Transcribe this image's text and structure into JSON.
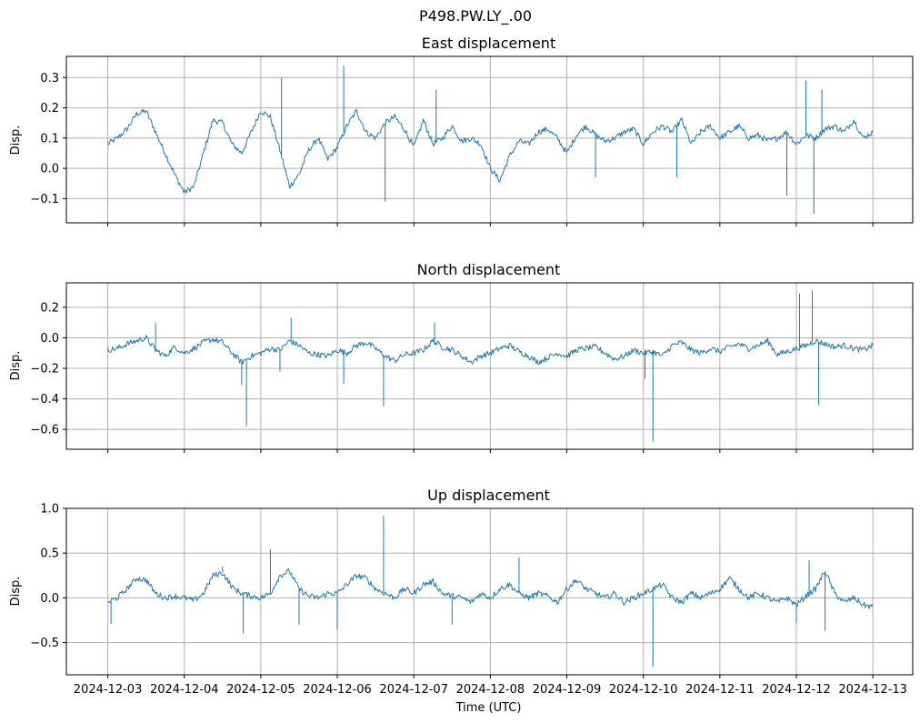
{
  "figure": {
    "suptitle": "P498.PW.LY_.00",
    "xlabel": "Time (UTC)",
    "line_color": "#1f77b4",
    "grid_color": "#b0b0b0"
  },
  "chart_data": [
    {
      "type": "line",
      "title": "East displacement",
      "ylabel": "Disp.",
      "ylim": [
        -0.18,
        0.37
      ],
      "yticks": [
        -0.1,
        0.0,
        0.1,
        0.2,
        0.3
      ],
      "ytick_labels": [
        "−0.1",
        "0.0",
        "0.1",
        "0.2",
        "0.3"
      ],
      "xlim": [
        "2024-12-02T11:00",
        "2024-12-13T12:30"
      ],
      "xticks": [
        "2024-12-03",
        "2024-12-04",
        "2024-12-05",
        "2024-12-06",
        "2024-12-07",
        "2024-12-08",
        "2024-12-09",
        "2024-12-10",
        "2024-12-11",
        "2024-12-12",
        "2024-12-13"
      ],
      "xtick_labels_visible": false,
      "grid": true,
      "series": [
        {
          "x": [
            "2024-12-03T00:00",
            "2024-12-03T03:00",
            "2024-12-03T06:00",
            "2024-12-03T09:00",
            "2024-12-03T12:00",
            "2024-12-03T15:00",
            "2024-12-03T18:00",
            "2024-12-03T21:00",
            "2024-12-04T00:00",
            "2024-12-04T03:00",
            "2024-12-04T06:00",
            "2024-12-04T09:00",
            "2024-12-04T12:00",
            "2024-12-04T15:00",
            "2024-12-04T18:00",
            "2024-12-04T21:00",
            "2024-12-05T00:00",
            "2024-12-05T03:00",
            "2024-12-05T06:00",
            "2024-12-05T09:00",
            "2024-12-05T12:00",
            "2024-12-05T15:00",
            "2024-12-05T18:00",
            "2024-12-05T21:00",
            "2024-12-06T00:00",
            "2024-12-06T03:00",
            "2024-12-06T06:00",
            "2024-12-06T09:00",
            "2024-12-06T12:00",
            "2024-12-06T15:00",
            "2024-12-06T18:00",
            "2024-12-06T21:00",
            "2024-12-07T00:00",
            "2024-12-07T03:00",
            "2024-12-07T06:00",
            "2024-12-07T09:00",
            "2024-12-07T12:00",
            "2024-12-07T15:00",
            "2024-12-07T18:00",
            "2024-12-07T21:00",
            "2024-12-08T00:00",
            "2024-12-08T03:00",
            "2024-12-08T06:00",
            "2024-12-08T09:00",
            "2024-12-08T12:00",
            "2024-12-08T15:00",
            "2024-12-08T18:00",
            "2024-12-08T21:00",
            "2024-12-09T00:00",
            "2024-12-09T03:00",
            "2024-12-09T06:00",
            "2024-12-09T09:00",
            "2024-12-09T12:00",
            "2024-12-09T15:00",
            "2024-12-09T18:00",
            "2024-12-09T21:00",
            "2024-12-10T00:00",
            "2024-12-10T03:00",
            "2024-12-10T06:00",
            "2024-12-10T09:00",
            "2024-12-10T12:00",
            "2024-12-10T15:00",
            "2024-12-10T18:00",
            "2024-12-10T21:00",
            "2024-12-11T00:00",
            "2024-12-11T03:00",
            "2024-12-11T06:00",
            "2024-12-11T09:00",
            "2024-12-11T12:00",
            "2024-12-11T15:00",
            "2024-12-11T18:00",
            "2024-12-11T21:00",
            "2024-12-12T00:00",
            "2024-12-12T03:00",
            "2024-12-12T06:00",
            "2024-12-12T09:00",
            "2024-12-12T12:00",
            "2024-12-12T15:00",
            "2024-12-12T18:00",
            "2024-12-12T21:00",
            "2024-12-13T00:00"
          ],
          "y": [
            0.08,
            0.1,
            0.13,
            0.18,
            0.19,
            0.12,
            0.05,
            -0.02,
            -0.08,
            -0.06,
            0.05,
            0.16,
            0.15,
            0.08,
            0.05,
            0.12,
            0.19,
            0.17,
            0.06,
            -0.06,
            -0.02,
            0.06,
            0.1,
            0.03,
            0.07,
            0.14,
            0.19,
            0.12,
            0.1,
            0.15,
            0.17,
            0.13,
            0.07,
            0.16,
            0.08,
            0.1,
            0.14,
            0.09,
            0.1,
            0.08,
            0.0,
            -0.04,
            0.04,
            0.09,
            0.08,
            0.12,
            0.13,
            0.1,
            0.05,
            0.11,
            0.14,
            0.11,
            0.09,
            0.1,
            0.12,
            0.13,
            0.08,
            0.12,
            0.14,
            0.12,
            0.16,
            0.08,
            0.12,
            0.14,
            0.1,
            0.12,
            0.14,
            0.1,
            0.11,
            0.09,
            0.1,
            0.12,
            0.08,
            0.11,
            0.1,
            0.13,
            0.14,
            0.12,
            0.16,
            0.1,
            0.12
          ]
        }
      ],
      "spikes": [
        {
          "x": "2024-12-05T06:30",
          "y": 0.3
        },
        {
          "x": "2024-12-06T02:00",
          "y": 0.34
        },
        {
          "x": "2024-12-06T15:00",
          "y": -0.11
        },
        {
          "x": "2024-12-07T07:00",
          "y": 0.26
        },
        {
          "x": "2024-12-09T09:00",
          "y": -0.03
        },
        {
          "x": "2024-12-10T10:30",
          "y": -0.03
        },
        {
          "x": "2024-12-11T21:00",
          "y": -0.09
        },
        {
          "x": "2024-12-12T03:00",
          "y": 0.29
        },
        {
          "x": "2024-12-12T05:30",
          "y": -0.15
        },
        {
          "x": "2024-12-12T08:00",
          "y": 0.26
        }
      ]
    },
    {
      "type": "line",
      "title": "North displacement",
      "ylabel": "Disp.",
      "ylim": [
        -0.73,
        0.36
      ],
      "yticks": [
        -0.6,
        -0.4,
        -0.2,
        0.0,
        0.2
      ],
      "ytick_labels": [
        "−0.6",
        "−0.4",
        "−0.2",
        "0.0",
        "0.2"
      ],
      "xlim": [
        "2024-12-02T11:00",
        "2024-12-13T12:30"
      ],
      "xticks": [
        "2024-12-03",
        "2024-12-04",
        "2024-12-05",
        "2024-12-06",
        "2024-12-07",
        "2024-12-08",
        "2024-12-09",
        "2024-12-10",
        "2024-12-11",
        "2024-12-12",
        "2024-12-13"
      ],
      "xtick_labels_visible": false,
      "grid": true,
      "series": [
        {
          "x": [
            "2024-12-03T00:00",
            "2024-12-03T03:00",
            "2024-12-03T06:00",
            "2024-12-03T09:00",
            "2024-12-03T12:00",
            "2024-12-03T15:00",
            "2024-12-03T18:00",
            "2024-12-03T21:00",
            "2024-12-04T00:00",
            "2024-12-04T03:00",
            "2024-12-04T06:00",
            "2024-12-04T09:00",
            "2024-12-04T12:00",
            "2024-12-04T15:00",
            "2024-12-04T18:00",
            "2024-12-04T21:00",
            "2024-12-05T00:00",
            "2024-12-05T03:00",
            "2024-12-05T06:00",
            "2024-12-05T09:00",
            "2024-12-05T12:00",
            "2024-12-05T15:00",
            "2024-12-05T18:00",
            "2024-12-05T21:00",
            "2024-12-06T00:00",
            "2024-12-06T03:00",
            "2024-12-06T06:00",
            "2024-12-06T09:00",
            "2024-12-06T12:00",
            "2024-12-06T15:00",
            "2024-12-06T18:00",
            "2024-12-06T21:00",
            "2024-12-07T00:00",
            "2024-12-07T03:00",
            "2024-12-07T06:00",
            "2024-12-07T09:00",
            "2024-12-07T12:00",
            "2024-12-07T15:00",
            "2024-12-07T18:00",
            "2024-12-07T21:00",
            "2024-12-08T00:00",
            "2024-12-08T03:00",
            "2024-12-08T06:00",
            "2024-12-08T09:00",
            "2024-12-08T12:00",
            "2024-12-08T15:00",
            "2024-12-08T18:00",
            "2024-12-08T21:00",
            "2024-12-09T00:00",
            "2024-12-09T03:00",
            "2024-12-09T06:00",
            "2024-12-09T09:00",
            "2024-12-09T12:00",
            "2024-12-09T15:00",
            "2024-12-09T18:00",
            "2024-12-09T21:00",
            "2024-12-10T00:00",
            "2024-12-10T03:00",
            "2024-12-10T06:00",
            "2024-12-10T09:00",
            "2024-12-10T12:00",
            "2024-12-10T15:00",
            "2024-12-10T18:00",
            "2024-12-10T21:00",
            "2024-12-11T00:00",
            "2024-12-11T03:00",
            "2024-12-11T06:00",
            "2024-12-11T09:00",
            "2024-12-11T12:00",
            "2024-12-11T15:00",
            "2024-12-11T18:00",
            "2024-12-11T21:00",
            "2024-12-12T00:00",
            "2024-12-12T03:00",
            "2024-12-12T06:00",
            "2024-12-12T09:00",
            "2024-12-12T12:00",
            "2024-12-12T15:00",
            "2024-12-12T18:00",
            "2024-12-12T21:00",
            "2024-12-13T00:00"
          ],
          "y": [
            -0.08,
            -0.07,
            -0.04,
            -0.02,
            0.0,
            -0.08,
            -0.12,
            -0.06,
            -0.1,
            -0.07,
            -0.03,
            -0.01,
            -0.03,
            -0.1,
            -0.16,
            -0.12,
            -0.1,
            -0.07,
            -0.08,
            -0.02,
            -0.05,
            -0.1,
            -0.11,
            -0.12,
            -0.08,
            -0.1,
            -0.05,
            -0.03,
            -0.07,
            -0.12,
            -0.15,
            -0.11,
            -0.1,
            -0.08,
            -0.02,
            -0.06,
            -0.08,
            -0.12,
            -0.16,
            -0.12,
            -0.1,
            -0.07,
            -0.05,
            -0.09,
            -0.12,
            -0.16,
            -0.13,
            -0.1,
            -0.12,
            -0.08,
            -0.07,
            -0.06,
            -0.1,
            -0.14,
            -0.12,
            -0.08,
            -0.1,
            -0.09,
            -0.12,
            -0.05,
            -0.03,
            -0.08,
            -0.1,
            -0.07,
            -0.09,
            -0.06,
            -0.04,
            -0.07,
            -0.05,
            -0.02,
            -0.11,
            -0.09,
            -0.07,
            -0.05,
            -0.02,
            -0.04,
            -0.06,
            -0.05,
            -0.07,
            -0.08,
            -0.05
          ]
        }
      ],
      "spikes": [
        {
          "x": "2024-12-03T15:00",
          "y": 0.1
        },
        {
          "x": "2024-12-04T18:00",
          "y": -0.31
        },
        {
          "x": "2024-12-04T19:30",
          "y": -0.58
        },
        {
          "x": "2024-12-05T06:00",
          "y": -0.22
        },
        {
          "x": "2024-12-05T09:30",
          "y": 0.13
        },
        {
          "x": "2024-12-06T02:00",
          "y": -0.3
        },
        {
          "x": "2024-12-06T14:30",
          "y": -0.45
        },
        {
          "x": "2024-12-07T06:30",
          "y": 0.1
        },
        {
          "x": "2024-12-10T00:30",
          "y": -0.27
        },
        {
          "x": "2024-12-10T03:00",
          "y": -0.68
        },
        {
          "x": "2024-12-12T01:00",
          "y": 0.29
        },
        {
          "x": "2024-12-12T05:00",
          "y": 0.31
        },
        {
          "x": "2024-12-12T07:00",
          "y": -0.44
        }
      ]
    },
    {
      "type": "line",
      "title": "Up displacement",
      "ylabel": "Disp.",
      "ylim": [
        -0.86,
        1.0
      ],
      "yticks": [
        -0.5,
        0.0,
        0.5,
        1.0
      ],
      "ytick_labels": [
        "−0.5",
        "0.0",
        "0.5",
        "1.0"
      ],
      "xlim": [
        "2024-12-02T11:00",
        "2024-12-13T12:30"
      ],
      "xticks": [
        "2024-12-03",
        "2024-12-04",
        "2024-12-05",
        "2024-12-06",
        "2024-12-07",
        "2024-12-08",
        "2024-12-09",
        "2024-12-10",
        "2024-12-11",
        "2024-12-12",
        "2024-12-13"
      ],
      "xtick_labels": [
        "2024-12-03",
        "2024-12-04",
        "2024-12-05",
        "2024-12-06",
        "2024-12-07",
        "2024-12-08",
        "2024-12-09",
        "2024-12-10",
        "2024-12-11",
        "2024-12-12",
        "2024-12-13"
      ],
      "xtick_labels_visible": true,
      "grid": true,
      "series": [
        {
          "x": [
            "2024-12-03T00:00",
            "2024-12-03T03:00",
            "2024-12-03T06:00",
            "2024-12-03T09:00",
            "2024-12-03T12:00",
            "2024-12-03T15:00",
            "2024-12-03T18:00",
            "2024-12-03T21:00",
            "2024-12-04T00:00",
            "2024-12-04T03:00",
            "2024-12-04T06:00",
            "2024-12-04T09:00",
            "2024-12-04T12:00",
            "2024-12-04T15:00",
            "2024-12-04T18:00",
            "2024-12-04T21:00",
            "2024-12-05T00:00",
            "2024-12-05T03:00",
            "2024-12-05T06:00",
            "2024-12-05T09:00",
            "2024-12-05T12:00",
            "2024-12-05T15:00",
            "2024-12-05T18:00",
            "2024-12-05T21:00",
            "2024-12-06T00:00",
            "2024-12-06T03:00",
            "2024-12-06T06:00",
            "2024-12-06T09:00",
            "2024-12-06T12:00",
            "2024-12-06T15:00",
            "2024-12-06T18:00",
            "2024-12-06T21:00",
            "2024-12-07T00:00",
            "2024-12-07T03:00",
            "2024-12-07T06:00",
            "2024-12-07T09:00",
            "2024-12-07T12:00",
            "2024-12-07T15:00",
            "2024-12-07T18:00",
            "2024-12-07T21:00",
            "2024-12-08T00:00",
            "2024-12-08T03:00",
            "2024-12-08T06:00",
            "2024-12-08T09:00",
            "2024-12-08T12:00",
            "2024-12-08T15:00",
            "2024-12-08T18:00",
            "2024-12-08T21:00",
            "2024-12-09T00:00",
            "2024-12-09T03:00",
            "2024-12-09T06:00",
            "2024-12-09T09:00",
            "2024-12-09T12:00",
            "2024-12-09T15:00",
            "2024-12-09T18:00",
            "2024-12-09T21:00",
            "2024-12-10T00:00",
            "2024-12-10T03:00",
            "2024-12-10T06:00",
            "2024-12-10T09:00",
            "2024-12-10T12:00",
            "2024-12-10T15:00",
            "2024-12-10T18:00",
            "2024-12-10T21:00",
            "2024-12-11T00:00",
            "2024-12-11T03:00",
            "2024-12-11T06:00",
            "2024-12-11T09:00",
            "2024-12-11T12:00",
            "2024-12-11T15:00",
            "2024-12-11T18:00",
            "2024-12-11T21:00",
            "2024-12-12T00:00",
            "2024-12-12T03:00",
            "2024-12-12T06:00",
            "2024-12-12T09:00",
            "2024-12-12T12:00",
            "2024-12-12T15:00",
            "2024-12-12T18:00",
            "2024-12-12T21:00",
            "2024-12-13T00:00"
          ],
          "y": [
            -0.05,
            0.0,
            0.1,
            0.22,
            0.2,
            0.05,
            0.0,
            0.02,
            0.0,
            -0.03,
            0.05,
            0.25,
            0.28,
            0.12,
            0.05,
            0.02,
            0.0,
            0.05,
            0.25,
            0.3,
            0.1,
            0.02,
            0.0,
            0.05,
            0.05,
            0.15,
            0.25,
            0.22,
            0.1,
            0.05,
            0.0,
            0.1,
            0.05,
            0.15,
            0.18,
            0.05,
            0.02,
            0.0,
            -0.05,
            0.05,
            0.0,
            0.1,
            0.15,
            0.05,
            0.0,
            0.05,
            0.02,
            -0.05,
            0.1,
            0.2,
            0.1,
            0.05,
            0.0,
            0.05,
            -0.05,
            0.0,
            0.05,
            0.1,
            0.15,
            0.0,
            -0.05,
            0.05,
            0.0,
            0.05,
            0.1,
            0.22,
            0.1,
            0.0,
            0.05,
            0.0,
            -0.05,
            0.0,
            -0.08,
            0.02,
            0.1,
            0.3,
            0.05,
            -0.05,
            0.0,
            -0.08,
            -0.1
          ]
        }
      ],
      "spikes": [
        {
          "x": "2024-12-03T01:00",
          "y": -0.29
        },
        {
          "x": "2024-12-04T12:00",
          "y": 0.35
        },
        {
          "x": "2024-12-04T18:30",
          "y": -0.4
        },
        {
          "x": "2024-12-05T03:00",
          "y": 0.54
        },
        {
          "x": "2024-12-05T12:00",
          "y": -0.3
        },
        {
          "x": "2024-12-06T00:00",
          "y": -0.35
        },
        {
          "x": "2024-12-06T14:30",
          "y": 0.92
        },
        {
          "x": "2024-12-07T12:00",
          "y": -0.3
        },
        {
          "x": "2024-12-08T09:00",
          "y": 0.45
        },
        {
          "x": "2024-12-10T03:00",
          "y": -0.77
        },
        {
          "x": "2024-12-12T00:00",
          "y": -0.28
        },
        {
          "x": "2024-12-12T04:00",
          "y": 0.42
        },
        {
          "x": "2024-12-12T09:00",
          "y": -0.37
        }
      ]
    }
  ]
}
